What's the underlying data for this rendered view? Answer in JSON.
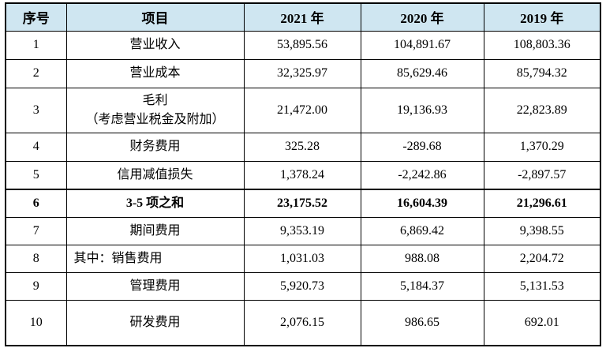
{
  "colors": {
    "header_bg": "#cfe6f1",
    "border": "#000000",
    "text": "#000000",
    "page_bg": "#ffffff"
  },
  "table": {
    "columns": [
      {
        "label": "序号"
      },
      {
        "label": "项目"
      },
      {
        "label": "2021 年"
      },
      {
        "label": "2020 年"
      },
      {
        "label": "2019 年"
      }
    ],
    "rows": [
      {
        "no": "1",
        "item": "营业收入",
        "values": [
          "53,895.56",
          "104,891.67",
          "108,803.36"
        ]
      },
      {
        "no": "2",
        "item": "营业成本",
        "values": [
          "32,325.97",
          "85,629.46",
          "85,794.32"
        ]
      },
      {
        "no": "3",
        "item": [
          "毛利",
          "（考虑营业税金及附加）"
        ],
        "values": [
          "21,472.00",
          "19,136.93",
          "22,823.89"
        ]
      },
      {
        "no": "4",
        "item": "财务费用",
        "values": [
          "325.28",
          "-289.68",
          "1,370.29"
        ]
      },
      {
        "no": "5",
        "item": "信用减值损失",
        "values": [
          "1,378.24",
          "-2,242.86",
          "-2,897.57"
        ]
      },
      {
        "no": "6",
        "item": "3-5 项之和",
        "values": [
          "23,175.52",
          "16,604.39",
          "21,296.61"
        ],
        "bold": true
      },
      {
        "no": "7",
        "item": "期间费用",
        "values": [
          "9,353.19",
          "6,869.42",
          "9,398.55"
        ]
      },
      {
        "no": "8",
        "item": "其中：销售费用",
        "values": [
          "1,031.03",
          "988.08",
          "2,204.72"
        ],
        "item_align": "left"
      },
      {
        "no": "9",
        "item": "管理费用",
        "values": [
          "5,920.73",
          "5,184.37",
          "5,131.53"
        ]
      },
      {
        "no": "10",
        "item": "研发费用",
        "values": [
          "2,076.15",
          "986.65",
          "692.01"
        ]
      }
    ]
  }
}
